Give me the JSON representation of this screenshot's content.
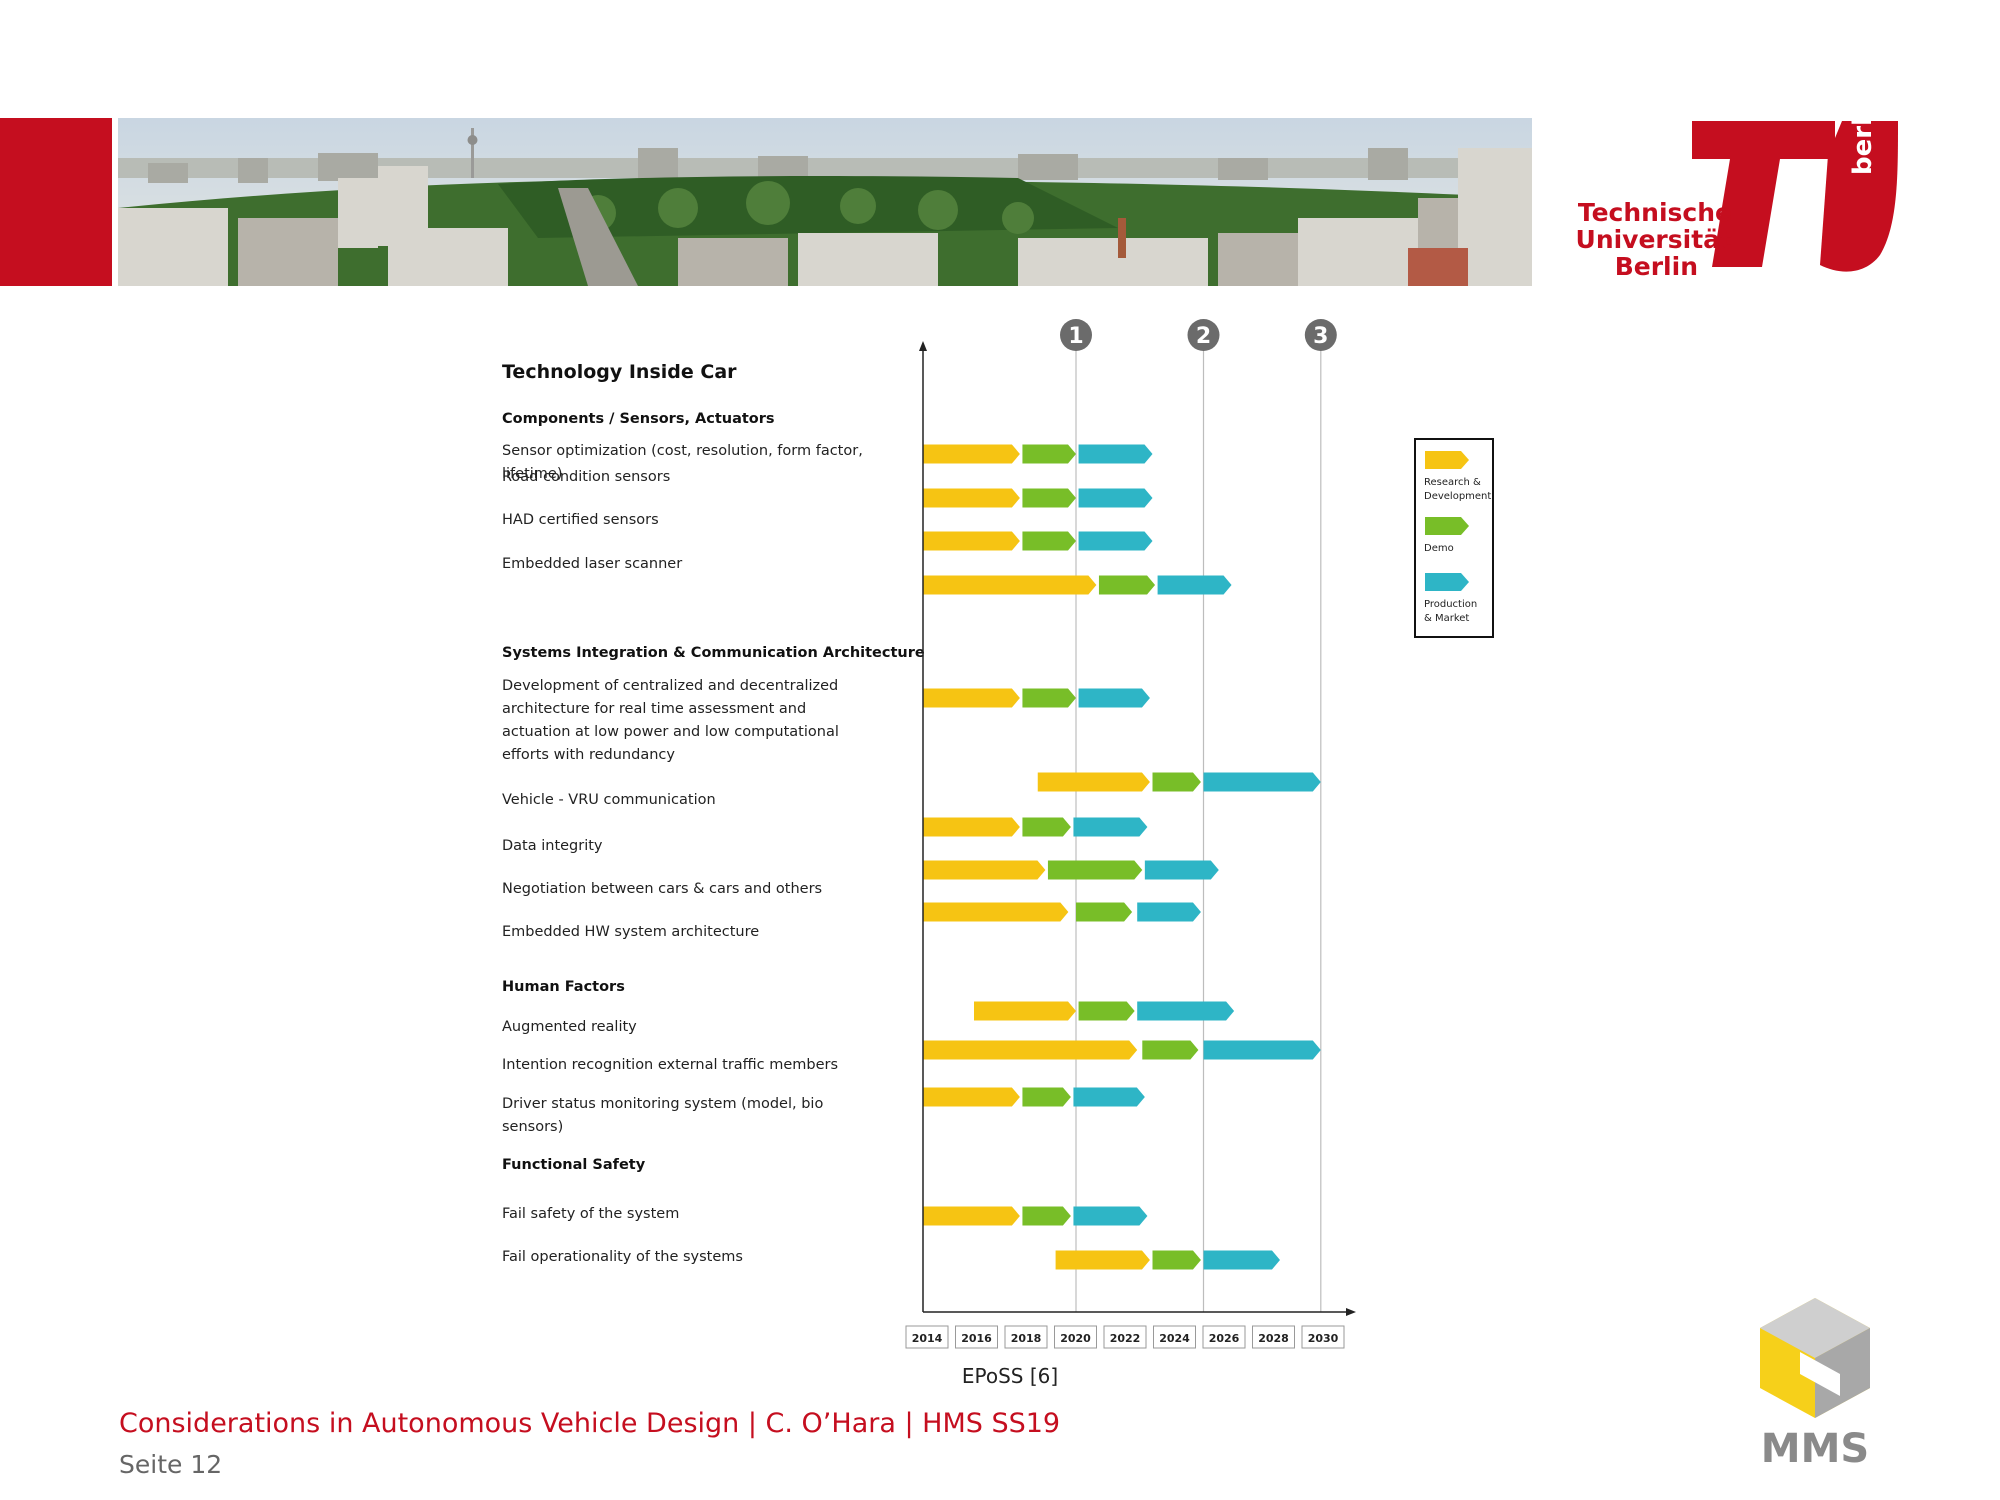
{
  "header": {
    "university_lines": [
      "Technische",
      "Universität",
      "Berlin"
    ],
    "logo_side_text": "berlin",
    "brand_color": "#c50e1f"
  },
  "chart_data": {
    "type": "gantt",
    "title": "Technology Inside Car",
    "x_ticks": [
      "2014",
      "2016",
      "2018",
      "2020",
      "2022",
      "2024",
      "2026",
      "2028",
      "2030"
    ],
    "xlim": [
      2014,
      2030.5
    ],
    "milestones": [
      {
        "label": "1",
        "year": 2020
      },
      {
        "label": "2",
        "year": 2025
      },
      {
        "label": "3",
        "year": 2029.6
      }
    ],
    "legend": {
      "position": "right",
      "entries": [
        {
          "key": "rd",
          "lines": [
            "Research &",
            "Development"
          ],
          "color": "#f6c413"
        },
        {
          "key": "demo",
          "lines": [
            "Demo"
          ],
          "color": "#78be28"
        },
        {
          "key": "pm",
          "lines": [
            "Production",
            "& Market"
          ],
          "color": "#2eb5c6"
        }
      ]
    },
    "sections": [
      {
        "title": "Components / Sensors, Actuators",
        "items": [
          {
            "label": [
              "Sensor optimization (cost, resolution, form factor,",
              "lifetime)"
            ],
            "rd": [
              2014,
              2017.8
            ],
            "demo": [
              2017.9,
              2020
            ],
            "pm": [
              2020.1,
              2023
            ]
          },
          {
            "label": [
              "Road condition sensors"
            ],
            "rd": [
              2014,
              2017.8
            ],
            "demo": [
              2017.9,
              2020
            ],
            "pm": [
              2020.1,
              2023
            ]
          },
          {
            "label": [
              "HAD certified sensors"
            ],
            "rd": [
              2014,
              2017.8
            ],
            "demo": [
              2017.9,
              2020
            ],
            "pm": [
              2020.1,
              2023
            ]
          },
          {
            "label": [
              "Embedded laser scanner"
            ],
            "rd": [
              2014,
              2020.8
            ],
            "demo": [
              2020.9,
              2023.1
            ],
            "pm": [
              2023.2,
              2026.1
            ]
          }
        ]
      },
      {
        "title": "Systems Integration & Communication Architecture",
        "items": [
          {
            "label": [
              "Development of centralized and decentralized",
              "architecture for real time assessment and",
              "actuation at low power and low computational",
              "efforts with redundancy"
            ],
            "rd": [
              2014,
              2017.8
            ],
            "demo": [
              2017.9,
              2020
            ],
            "pm": [
              2020.1,
              2022.9
            ]
          },
          {
            "label": [
              "Vehicle - VRU communication"
            ],
            "rd": [
              2018.5,
              2022.9
            ],
            "demo": [
              2023,
              2024.9
            ],
            "pm": [
              2025,
              2029.6
            ]
          },
          {
            "label": [
              "Data integrity"
            ],
            "rd": [
              2014,
              2017.8
            ],
            "demo": [
              2017.9,
              2019.8
            ],
            "pm": [
              2019.9,
              2022.8
            ]
          },
          {
            "label": [
              "Negotiation between cars & cars and others"
            ],
            "rd": [
              2014,
              2018.8
            ],
            "demo": [
              2018.9,
              2022.6
            ],
            "pm": [
              2022.7,
              2025.6
            ]
          },
          {
            "label": [
              "Embedded HW system architecture"
            ],
            "rd": [
              2014,
              2019.7
            ],
            "demo": [
              2020,
              2022.2
            ],
            "pm": [
              2022.4,
              2024.9
            ]
          }
        ]
      },
      {
        "title": "Human Factors",
        "items": [
          {
            "label": [
              "Augmented reality"
            ],
            "rd": [
              2016,
              2020
            ],
            "demo": [
              2020.1,
              2022.3
            ],
            "pm": [
              2022.4,
              2026.2
            ]
          },
          {
            "label": [
              "Intention recognition external traffic members"
            ],
            "rd": [
              2014,
              2022.4
            ],
            "demo": [
              2022.6,
              2024.8
            ],
            "pm": [
              2025,
              2029.6
            ]
          },
          {
            "label": [
              "Driver status monitoring system (model, bio",
              "sensors)"
            ],
            "rd": [
              2014,
              2017.8
            ],
            "demo": [
              2017.9,
              2019.8
            ],
            "pm": [
              2019.9,
              2022.7
            ]
          },
          {
            "label": []
          }
        ]
      },
      {
        "title": "Functional Safety",
        "items": [
          {
            "label": [
              "Fail safety of the system"
            ],
            "rd": [
              2014,
              2017.8
            ],
            "demo": [
              2017.9,
              2019.8
            ],
            "pm": [
              2019.9,
              2022.8
            ]
          },
          {
            "label": [
              "Fail operationality of the systems"
            ],
            "rd": [
              2019.2,
              2022.9
            ],
            "demo": [
              2023,
              2024.9
            ],
            "pm": [
              2025,
              2028
            ]
          }
        ]
      }
    ]
  },
  "source": "EPoSS [6]",
  "footer": {
    "title": "Considerations in Autonomous Vehicle Design | C. O’Hara | HMS SS19",
    "page": "Seite 12",
    "logo_text": "MMS"
  }
}
